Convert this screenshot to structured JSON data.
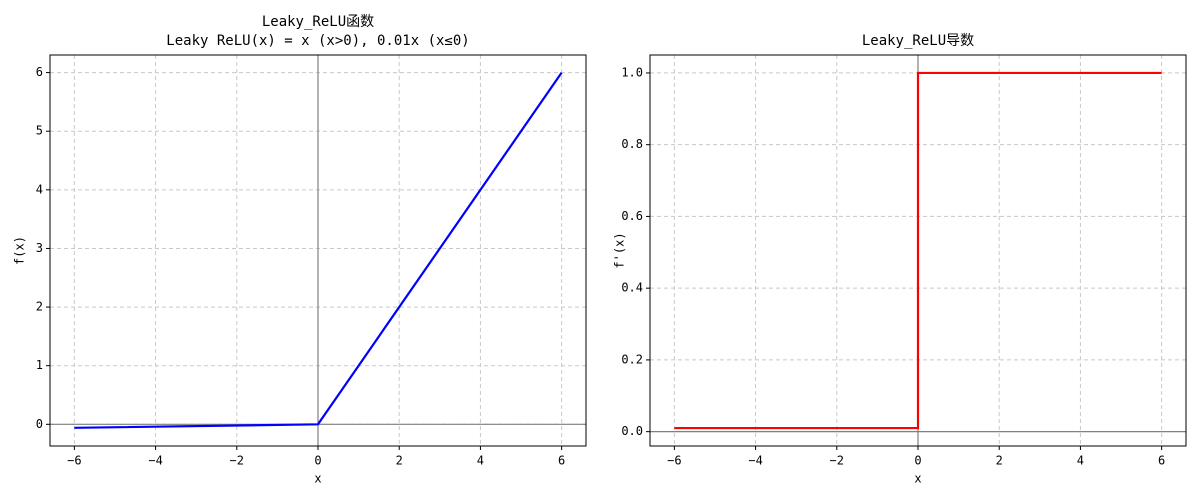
{
  "chart_data": [
    {
      "type": "line",
      "title": "Leaky_ReLU函数",
      "subtitle": "Leaky ReLU(x) = x (x>0), 0.01x (x≤0)",
      "x_label": "x",
      "y_label": "f(x)",
      "series": [
        {
          "color": "#0000ff",
          "x": [
            -6,
            0,
            6
          ],
          "values": [
            -0.06,
            0,
            6
          ]
        }
      ],
      "xlim": [
        -6.6,
        6.6
      ],
      "ylim": [
        -0.37,
        6.3
      ],
      "xticks": [
        {
          "value": -6,
          "label": "−6"
        },
        {
          "value": -4,
          "label": "−4"
        },
        {
          "value": -2,
          "label": "−2"
        },
        0,
        2,
        4,
        6
      ],
      "yticks": [
        0,
        1,
        2,
        3,
        4,
        5,
        6
      ],
      "grid": true
    },
    {
      "type": "line",
      "title": "Leaky_ReLU导数",
      "x_label": "x",
      "y_label": "f'(x)",
      "series": [
        {
          "color": "#ff0000",
          "x": [
            -6,
            0,
            0,
            6
          ],
          "values": [
            0.01,
            0.01,
            1,
            1
          ]
        }
      ],
      "xlim": [
        -6.6,
        6.6
      ],
      "ylim": [
        -0.04,
        1.05
      ],
      "xticks": [
        {
          "value": -6,
          "label": "−6"
        },
        {
          "value": -4,
          "label": "−4"
        },
        {
          "value": -2,
          "label": "−2"
        },
        0,
        2,
        4,
        6
      ],
      "yticks": [
        {
          "value": 0,
          "label": "0.0"
        },
        0.2,
        0.4,
        0.6,
        0.8,
        {
          "value": 1,
          "label": "1.0"
        }
      ],
      "grid": true
    }
  ]
}
